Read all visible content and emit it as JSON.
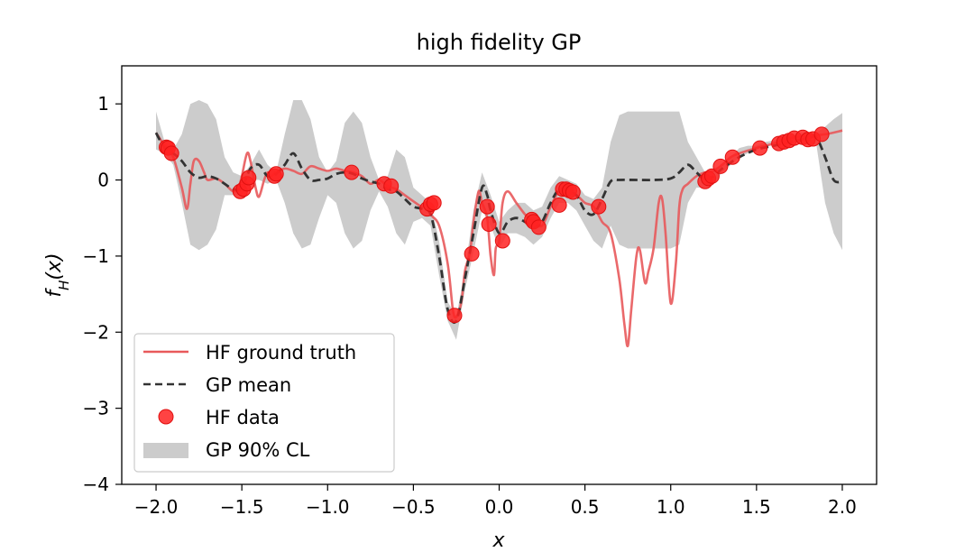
{
  "chart_data": {
    "type": "line",
    "title": "high fidelity GP",
    "xlabel": "x",
    "ylabel": "f_H(x)",
    "ylabel_parts": {
      "base": "f",
      "sub": "H",
      "arg": "(x)"
    },
    "xlim": [
      -2.2,
      2.2
    ],
    "ylim": [
      -4,
      1.5
    ],
    "xticks": [
      -2.0,
      -1.5,
      -1.0,
      -0.5,
      0.0,
      0.5,
      1.0,
      1.5,
      2.0
    ],
    "xtick_labels": [
      "−2.0",
      "−1.5",
      "−1.0",
      "−0.5",
      "0.0",
      "0.5",
      "1.0",
      "1.5",
      "2.0"
    ],
    "yticks": [
      -4,
      -3,
      -2,
      -1,
      0,
      1
    ],
    "ytick_labels": [
      "−4",
      "−3",
      "−2",
      "−1",
      "0",
      "1"
    ],
    "grid": false,
    "legend_position": "lower-left",
    "legend": [
      {
        "label": "HF ground truth",
        "kind": "line",
        "color": "#e8595b"
      },
      {
        "label": "GP mean",
        "kind": "dashed",
        "color": "#333333"
      },
      {
        "label": "HF data",
        "kind": "marker",
        "color": "#ff2222"
      },
      {
        "label": "GP 90% CL",
        "kind": "patch",
        "color": "#cccccc"
      }
    ],
    "series": [
      {
        "name": "HF ground truth",
        "color": "#e8595b",
        "x": [
          -2.0,
          -1.95,
          -1.9,
          -1.85,
          -1.82,
          -1.8,
          -1.78,
          -1.75,
          -1.72,
          -1.7,
          -1.65,
          -1.6,
          -1.55,
          -1.52,
          -1.5,
          -1.47,
          -1.45,
          -1.42,
          -1.4,
          -1.37,
          -1.35,
          -1.33,
          -1.3,
          -1.25,
          -1.2,
          -1.15,
          -1.1,
          -1.05,
          -1.0,
          -0.95,
          -0.9,
          -0.85,
          -0.8,
          -0.75,
          -0.7,
          -0.65,
          -0.6,
          -0.55,
          -0.5,
          -0.45,
          -0.42,
          -0.4,
          -0.35,
          -0.3,
          -0.27,
          -0.25,
          -0.22,
          -0.2,
          -0.17,
          -0.15,
          -0.12,
          -0.1,
          -0.07,
          -0.05,
          -0.03,
          -0.02,
          0.0,
          0.02,
          0.05,
          0.1,
          0.15,
          0.2,
          0.25,
          0.3,
          0.35,
          0.4,
          0.45,
          0.5,
          0.55,
          0.6,
          0.65,
          0.7,
          0.73,
          0.75,
          0.77,
          0.8,
          0.82,
          0.85,
          0.87,
          0.9,
          0.93,
          0.95,
          0.97,
          1.0,
          1.03,
          1.05,
          1.07,
          1.1,
          1.15,
          1.2,
          1.25,
          1.3,
          1.35,
          1.4,
          1.5,
          1.6,
          1.7,
          1.8,
          1.9,
          2.0
        ],
        "y": [
          0.62,
          0.45,
          0.3,
          -0.1,
          -0.38,
          -0.05,
          0.25,
          0.25,
          0.1,
          0.0,
          0.02,
          -0.05,
          -0.15,
          -0.1,
          0.05,
          0.35,
          0.25,
          -0.1,
          -0.22,
          0.0,
          0.1,
          0.05,
          0.1,
          0.15,
          0.12,
          0.08,
          0.18,
          0.15,
          0.12,
          0.15,
          0.12,
          0.1,
          0.05,
          -0.05,
          0.0,
          -0.08,
          -0.12,
          -0.2,
          -0.28,
          -0.35,
          -0.3,
          -0.45,
          -0.6,
          -1.1,
          -1.7,
          -1.8,
          -1.6,
          -1.2,
          -0.95,
          -0.55,
          -0.15,
          -0.3,
          -0.5,
          -1.0,
          -1.25,
          -0.9,
          -0.8,
          -0.3,
          -0.15,
          -0.3,
          -0.45,
          -0.55,
          -0.6,
          -0.35,
          -0.15,
          -0.18,
          -0.2,
          -0.3,
          -0.35,
          -0.55,
          -0.7,
          -1.3,
          -1.9,
          -2.18,
          -1.7,
          -1.0,
          -0.92,
          -1.35,
          -1.2,
          -0.9,
          -0.3,
          -0.25,
          -0.7,
          -1.62,
          -1.1,
          -0.35,
          -0.12,
          -0.05,
          0.05,
          0.1,
          0.12,
          0.2,
          0.3,
          0.35,
          0.42,
          0.48,
          0.55,
          0.58,
          0.6,
          0.65
        ]
      },
      {
        "name": "GP mean",
        "color": "#333333",
        "x": [
          -2.0,
          -1.95,
          -1.9,
          -1.85,
          -1.8,
          -1.75,
          -1.7,
          -1.65,
          -1.6,
          -1.55,
          -1.5,
          -1.45,
          -1.4,
          -1.35,
          -1.3,
          -1.25,
          -1.2,
          -1.15,
          -1.1,
          -1.05,
          -1.0,
          -0.95,
          -0.9,
          -0.85,
          -0.8,
          -0.75,
          -0.7,
          -0.65,
          -0.6,
          -0.55,
          -0.5,
          -0.45,
          -0.4,
          -0.35,
          -0.3,
          -0.25,
          -0.2,
          -0.15,
          -0.1,
          -0.07,
          -0.05,
          0.0,
          0.05,
          0.1,
          0.15,
          0.2,
          0.25,
          0.3,
          0.35,
          0.4,
          0.45,
          0.5,
          0.55,
          0.6,
          0.65,
          0.7,
          0.8,
          0.9,
          1.0,
          1.05,
          1.1,
          1.15,
          1.2,
          1.25,
          1.3,
          1.4,
          1.5,
          1.6,
          1.7,
          1.8,
          1.85,
          1.9,
          1.95,
          2.0
        ],
        "y": [
          0.62,
          0.42,
          0.35,
          0.25,
          0.1,
          0.03,
          0.05,
          0.02,
          -0.05,
          -0.12,
          -0.1,
          0.15,
          0.2,
          0.05,
          0.08,
          0.2,
          0.35,
          0.15,
          0.0,
          0.0,
          0.02,
          0.08,
          0.1,
          0.08,
          0.02,
          -0.02,
          -0.05,
          -0.12,
          -0.15,
          -0.25,
          -0.35,
          -0.38,
          -0.45,
          -1.0,
          -1.7,
          -1.85,
          -1.3,
          -0.7,
          -0.1,
          -0.2,
          -0.4,
          -0.7,
          -0.55,
          -0.5,
          -0.55,
          -0.62,
          -0.55,
          -0.3,
          -0.12,
          -0.15,
          -0.2,
          -0.4,
          -0.45,
          -0.25,
          -0.02,
          0.0,
          0.0,
          0.0,
          0.02,
          0.1,
          0.2,
          0.1,
          0.0,
          0.05,
          0.15,
          0.3,
          0.4,
          0.45,
          0.5,
          0.55,
          0.55,
          0.3,
          0.0,
          -0.02
        ]
      }
    ],
    "band": {
      "name": "GP 90% CL",
      "color": "#cccccc",
      "x": [
        -2.0,
        -1.95,
        -1.9,
        -1.85,
        -1.8,
        -1.75,
        -1.7,
        -1.65,
        -1.6,
        -1.55,
        -1.5,
        -1.45,
        -1.4,
        -1.35,
        -1.3,
        -1.25,
        -1.2,
        -1.15,
        -1.1,
        -1.05,
        -1.0,
        -0.95,
        -0.9,
        -0.85,
        -0.8,
        -0.75,
        -0.7,
        -0.65,
        -0.6,
        -0.55,
        -0.5,
        -0.45,
        -0.4,
        -0.35,
        -0.3,
        -0.25,
        -0.2,
        -0.15,
        -0.1,
        -0.05,
        0.0,
        0.05,
        0.1,
        0.15,
        0.2,
        0.25,
        0.3,
        0.35,
        0.4,
        0.45,
        0.5,
        0.55,
        0.6,
        0.65,
        0.7,
        0.75,
        0.8,
        0.85,
        0.9,
        0.95,
        1.0,
        1.05,
        1.1,
        1.15,
        1.2,
        1.25,
        1.3,
        1.35,
        1.4,
        1.45,
        1.5,
        1.55,
        1.6,
        1.65,
        1.7,
        1.75,
        1.8,
        1.85,
        1.9,
        1.95,
        2.0
      ],
      "upper": [
        0.9,
        0.5,
        0.4,
        0.6,
        1.0,
        1.05,
        1.0,
        0.8,
        0.3,
        0.1,
        0.05,
        0.2,
        0.4,
        0.2,
        0.1,
        0.6,
        1.05,
        1.05,
        0.8,
        0.3,
        0.1,
        0.25,
        0.75,
        0.9,
        0.75,
        0.3,
        0.0,
        0.05,
        0.4,
        0.3,
        -0.1,
        -0.2,
        -0.3,
        -0.8,
        -1.6,
        -1.8,
        -1.2,
        -0.4,
        0.1,
        -0.2,
        -0.55,
        -0.4,
        -0.3,
        -0.3,
        -0.4,
        -0.35,
        -0.1,
        0.05,
        0.0,
        -0.05,
        -0.2,
        -0.25,
        -0.1,
        0.5,
        0.85,
        0.9,
        0.9,
        0.9,
        0.9,
        0.9,
        0.9,
        0.9,
        0.5,
        0.3,
        0.1,
        0.15,
        0.2,
        0.3,
        0.42,
        0.45,
        0.45,
        0.5,
        0.52,
        0.55,
        0.58,
        0.62,
        0.6,
        0.62,
        0.7,
        0.8,
        0.88
      ],
      "lower": [
        0.4,
        0.35,
        0.2,
        -0.3,
        -0.85,
        -0.92,
        -0.85,
        -0.65,
        -0.2,
        -0.2,
        -0.2,
        0.0,
        0.0,
        -0.05,
        0.0,
        -0.3,
        -0.7,
        -0.9,
        -0.85,
        -0.5,
        -0.2,
        -0.3,
        -0.7,
        -0.9,
        -0.8,
        -0.4,
        -0.15,
        -0.35,
        -0.7,
        -0.85,
        -0.55,
        -0.5,
        -0.6,
        -1.25,
        -1.85,
        -2.1,
        -1.45,
        -0.95,
        -0.4,
        -0.6,
        -0.9,
        -0.7,
        -0.7,
        -0.75,
        -0.85,
        -0.75,
        -0.5,
        -0.3,
        -0.3,
        -0.4,
        -0.6,
        -0.8,
        -0.9,
        -0.6,
        -0.85,
        -0.9,
        -0.9,
        -0.9,
        -0.9,
        -0.9,
        -0.9,
        -0.85,
        -0.3,
        -0.1,
        -0.1,
        -0.05,
        0.1,
        0.2,
        0.3,
        0.35,
        0.4,
        0.45,
        0.48,
        0.5,
        0.52,
        0.5,
        0.52,
        0.45,
        -0.3,
        -0.7,
        -0.92
      ]
    },
    "points": {
      "name": "HF data",
      "color": "#ff2222",
      "x": [
        -1.94,
        -1.93,
        -1.91,
        -1.51,
        -1.49,
        -1.47,
        -1.46,
        -1.31,
        -1.3,
        -0.86,
        -0.67,
        -0.63,
        -0.42,
        -0.4,
        -0.38,
        -0.26,
        -0.16,
        -0.07,
        -0.06,
        0.02,
        0.19,
        0.2,
        0.23,
        0.35,
        0.37,
        0.39,
        0.41,
        0.43,
        0.58,
        1.2,
        1.22,
        1.24,
        1.29,
        1.36,
        1.52,
        1.63,
        1.66,
        1.69,
        1.72,
        1.77,
        1.8,
        1.83,
        1.88
      ],
      "y": [
        0.43,
        0.42,
        0.35,
        -0.15,
        -0.12,
        -0.05,
        0.03,
        0.05,
        0.08,
        0.1,
        -0.05,
        -0.08,
        -0.38,
        -0.32,
        -0.3,
        -1.78,
        -0.97,
        -0.35,
        -0.58,
        -0.8,
        -0.52,
        -0.55,
        -0.62,
        -0.33,
        -0.12,
        -0.12,
        -0.14,
        -0.16,
        -0.35,
        -0.02,
        0.02,
        0.05,
        0.18,
        0.3,
        0.42,
        0.48,
        0.5,
        0.52,
        0.55,
        0.56,
        0.53,
        0.54,
        0.6
      ]
    }
  }
}
